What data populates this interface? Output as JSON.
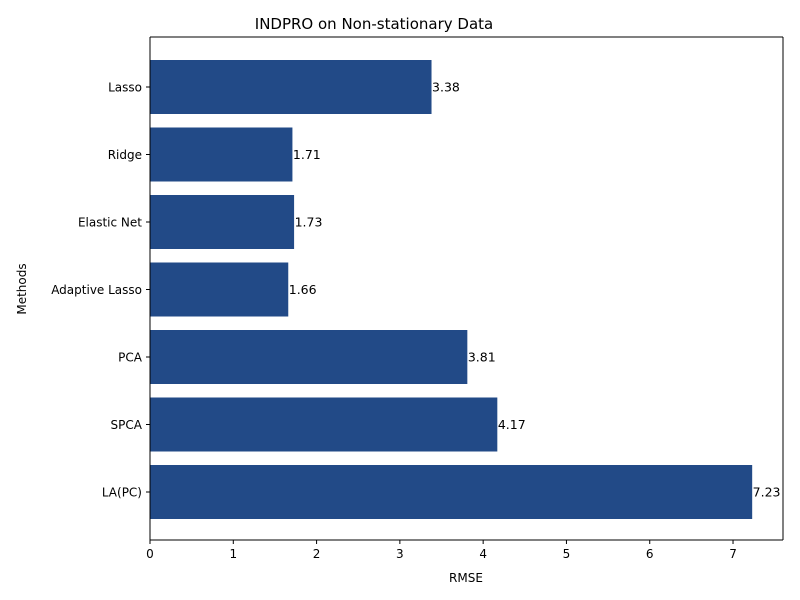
{
  "chart_data": {
    "type": "bar",
    "orientation": "horizontal",
    "title": "INDPRO on Non-stationary Data",
    "xlabel": "RMSE",
    "ylabel": "Methods",
    "categories": [
      "Lasso",
      "Ridge",
      "Elastic Net",
      "Adaptive Lasso",
      "PCA",
      "SPCA",
      "LA(PC)"
    ],
    "values": [
      3.38,
      1.71,
      1.73,
      1.66,
      3.81,
      4.17,
      7.23
    ],
    "value_labels": [
      "3.38",
      "1.71",
      "1.73",
      "1.66",
      "3.81",
      "4.17",
      "7.23"
    ],
    "xlim": [
      0,
      7.6
    ],
    "xticks": [
      0,
      1,
      2,
      3,
      4,
      5,
      6,
      7
    ],
    "xtick_labels": [
      "0",
      "1",
      "2",
      "3",
      "4",
      "5",
      "6",
      "7"
    ],
    "grid": false,
    "bar_color": "#224a87"
  }
}
